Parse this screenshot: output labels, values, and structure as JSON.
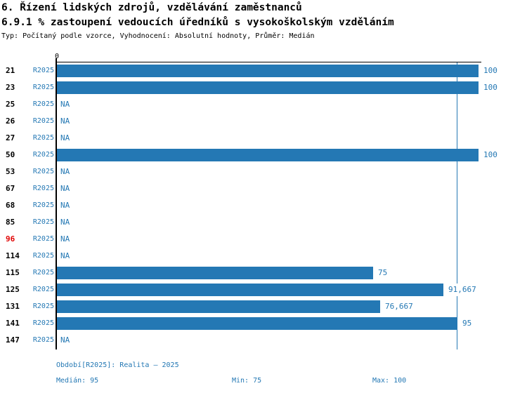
{
  "header": {
    "title1": "6. Řízení lidských zdrojů, vzdělávání zaměstnanců",
    "title2": "6.9.1 % zastoupení vedoucích úředníků s vysokoškolským vzděláním",
    "meta": "Typ: Počítaný podle vzorce, Vyhodnocení: Absolutní hodnoty, Průměr: Medián"
  },
  "axis": {
    "zero_label": "0",
    "min": 0,
    "max": 100
  },
  "period_label": "R2025",
  "na_label": "NA",
  "colors": {
    "bar_blue": "#2478B4",
    "text_blue": "#2478B4",
    "highlight_red": "#E00000",
    "axis_black": "#000000",
    "background": "#ffffff"
  },
  "rows": [
    {
      "id": "21",
      "value": 100,
      "display": "100",
      "highlight": false
    },
    {
      "id": "23",
      "value": 100,
      "display": "100",
      "highlight": false
    },
    {
      "id": "25",
      "value": null,
      "display": "NA",
      "highlight": false
    },
    {
      "id": "26",
      "value": null,
      "display": "NA",
      "highlight": false
    },
    {
      "id": "27",
      "value": null,
      "display": "NA",
      "highlight": false
    },
    {
      "id": "50",
      "value": 100,
      "display": "100",
      "highlight": false
    },
    {
      "id": "53",
      "value": null,
      "display": "NA",
      "highlight": false
    },
    {
      "id": "67",
      "value": null,
      "display": "NA",
      "highlight": false
    },
    {
      "id": "68",
      "value": null,
      "display": "NA",
      "highlight": false
    },
    {
      "id": "85",
      "value": null,
      "display": "NA",
      "highlight": false
    },
    {
      "id": "96",
      "value": null,
      "display": "NA",
      "highlight": true
    },
    {
      "id": "114",
      "value": null,
      "display": "NA",
      "highlight": false
    },
    {
      "id": "115",
      "value": 75,
      "display": "75",
      "highlight": false
    },
    {
      "id": "125",
      "value": 91.667,
      "display": "91,667",
      "highlight": false
    },
    {
      "id": "131",
      "value": 76.667,
      "display": "76,667",
      "highlight": false
    },
    {
      "id": "141",
      "value": 95,
      "display": "95",
      "highlight": false
    },
    {
      "id": "147",
      "value": null,
      "display": "NA",
      "highlight": false
    }
  ],
  "footer": {
    "period": "Období[R2025]: Realita – 2025",
    "median": "Medián: 95",
    "min": "Min: 75",
    "max": "Max: 100"
  },
  "chart_data": {
    "type": "bar",
    "orientation": "horizontal",
    "title": "6.9.1 % zastoupení vedoucích úředníků s vysokoškolským vzděláním",
    "subtitle": "6. Řízení lidských zdrojů, vzdělávání zaměstnanců",
    "meta": "Typ: Počítaný podle vzorce, Vyhodnocení: Absolutní hodnoty, Průměr: Medián",
    "categories": [
      "21",
      "23",
      "25",
      "26",
      "27",
      "50",
      "53",
      "67",
      "68",
      "85",
      "96",
      "114",
      "115",
      "125",
      "131",
      "141",
      "147"
    ],
    "series": [
      {
        "name": "R2025",
        "values": [
          100,
          100,
          null,
          null,
          null,
          100,
          null,
          null,
          null,
          null,
          null,
          null,
          75,
          91.667,
          76.667,
          95,
          null
        ]
      }
    ],
    "value_labels": [
      "100",
      "100",
      "NA",
      "NA",
      "NA",
      "100",
      "NA",
      "NA",
      "NA",
      "NA",
      "NA",
      "NA",
      "75",
      "91,667",
      "76,667",
      "95",
      "NA"
    ],
    "xlabel": "",
    "ylabel": "",
    "xlim": [
      0,
      100
    ],
    "grid": false,
    "legend_position": "none",
    "reference_line": {
      "value": 95,
      "meaning": "Medián"
    },
    "highlighted_category": "96",
    "stats": {
      "median": 95,
      "min": 75,
      "max": 100
    }
  }
}
